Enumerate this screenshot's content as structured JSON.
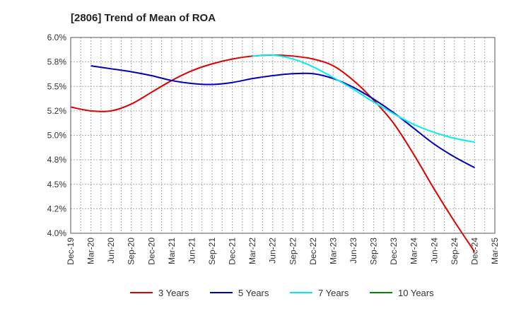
{
  "chart_data": {
    "type": "line",
    "title": "[2806]  Trend of Mean of ROA",
    "xlabel": "",
    "ylabel": "",
    "ylim": [
      4.0,
      6.0
    ],
    "y_ticks": [
      4.0,
      4.25,
      4.5,
      4.75,
      5.0,
      5.25,
      5.5,
      5.75,
      6.0
    ],
    "y_tick_labels": [
      "4.0%",
      "4.2%",
      "4.5%",
      "4.8%",
      "5.0%",
      "5.2%",
      "5.5%",
      "5.8%",
      "6.0%"
    ],
    "x_tick_labels": [
      "Dec-19",
      "Mar-20",
      "Jun-20",
      "Sep-20",
      "Dec-20",
      "Mar-21",
      "Jun-21",
      "Sep-21",
      "Dec-21",
      "Mar-22",
      "Jun-22",
      "Sep-22",
      "Dec-22",
      "Mar-23",
      "Jun-23",
      "Sep-23",
      "Dec-23",
      "Mar-24",
      "Jun-24",
      "Sep-24",
      "Dec-24",
      "Mar-25"
    ],
    "grid": true,
    "legend_position": "bottom",
    "series": [
      {
        "name": "3 Years",
        "color": "#dd0000",
        "start_index": 0,
        "values": [
          5.29,
          5.25,
          5.25,
          5.32,
          5.44,
          5.56,
          5.66,
          5.73,
          5.78,
          5.81,
          5.82,
          5.81,
          5.78,
          5.71,
          5.56,
          5.36,
          5.12,
          4.8,
          4.45,
          4.12,
          3.81
        ]
      },
      {
        "name": "5 Years",
        "color": "#0000bb",
        "start_index": 1,
        "values": [
          5.71,
          5.68,
          5.65,
          5.61,
          5.56,
          5.53,
          5.52,
          5.54,
          5.58,
          5.61,
          5.63,
          5.63,
          5.58,
          5.49,
          5.37,
          5.23,
          5.07,
          4.91,
          4.78,
          4.67
        ]
      },
      {
        "name": "7 Years",
        "color": "#00eeee",
        "start_index": 9,
        "values": [
          5.81,
          5.82,
          5.78,
          5.7,
          5.59,
          5.47,
          5.34,
          5.22,
          5.11,
          5.03,
          4.97,
          4.93
        ]
      },
      {
        "name": "10 Years",
        "color": "#008800",
        "start_index": 0,
        "values": []
      }
    ]
  }
}
